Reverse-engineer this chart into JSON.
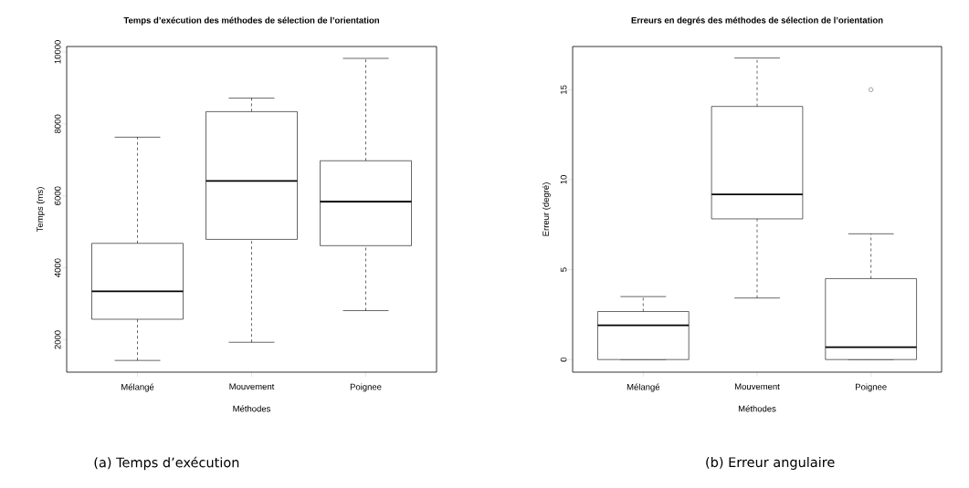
{
  "chart_data": [
    {
      "type": "box",
      "title": "Temps d’exécution des méthodes de sélection de l’orientation",
      "xlabel": "Méthodes",
      "ylabel": "Temps (ms)",
      "categories": [
        "Mélangé",
        "Mouvement",
        "Poignee"
      ],
      "boxes": [
        {
          "low": 1425,
          "q1": 2570,
          "median": 3345,
          "q3": 4680,
          "high": 7630
        },
        {
          "low": 1930,
          "q1": 4790,
          "median": 6415,
          "q3": 8340,
          "high": 8715
        },
        {
          "low": 2810,
          "q1": 4615,
          "median": 5840,
          "q3": 6975,
          "high": 9820
        }
      ],
      "ylim": [
        1100,
        10150
      ],
      "yticks": [
        2000,
        4000,
        6000,
        8000,
        10000
      ],
      "annotations": [
        "(a) Temps d’exécution"
      ]
    },
    {
      "type": "box",
      "title": "Erreurs en degrés des méthodes de sélection de l’orientation",
      "xlabel": "Méthodes",
      "ylabel": "Erreur (degré)",
      "categories": [
        "Mélangé",
        "Mouvement",
        "Poignee"
      ],
      "boxes": [
        {
          "low": 0,
          "q1": 0,
          "median": 1.9,
          "q3": 2.67,
          "high": 3.5
        },
        {
          "low": 3.42,
          "q1": 7.82,
          "median": 9.18,
          "q3": 14.07,
          "high": 16.76
        },
        {
          "low": 0,
          "q1": 0,
          "median": 0.69,
          "q3": 4.5,
          "high": 6.99,
          "outliers": [
            15
          ]
        }
      ],
      "ylim": [
        -0.7,
        17.4
      ],
      "yticks": [
        0,
        5,
        10,
        15
      ],
      "annotations": [
        "(b) Erreur angulaire"
      ]
    }
  ]
}
